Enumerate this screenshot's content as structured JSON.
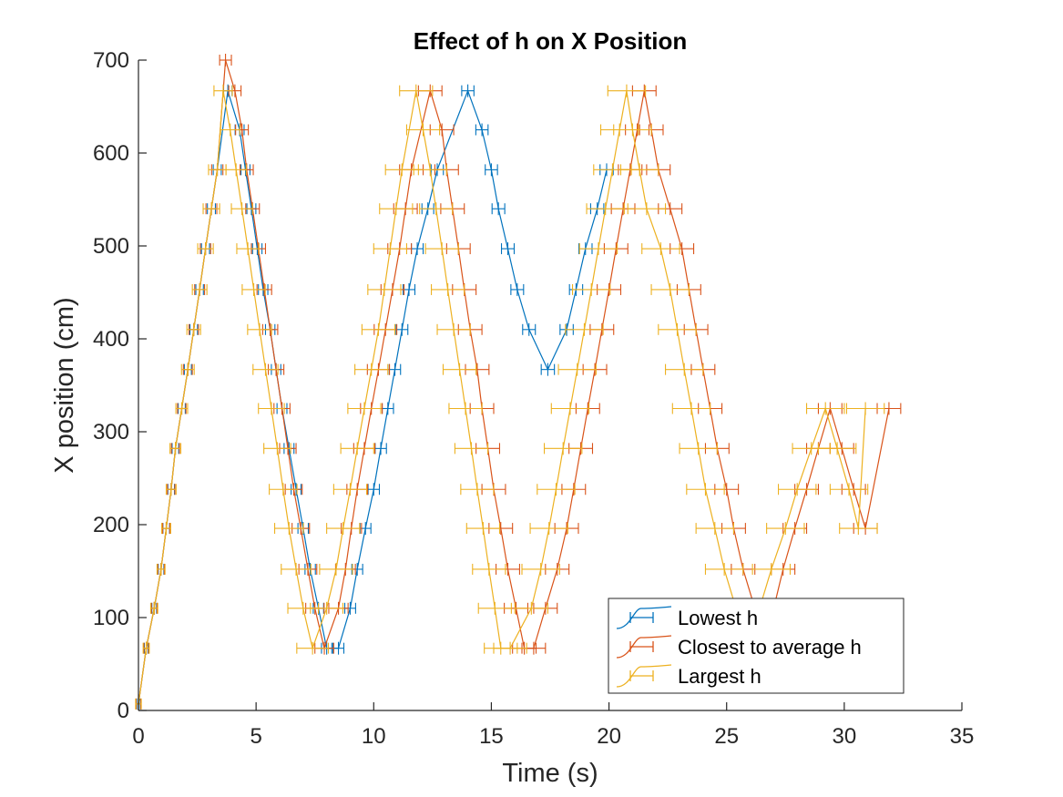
{
  "chart_data": {
    "type": "line",
    "title": "Effect of h on X Position",
    "xlabel": "Time (s)",
    "ylabel": "X position (cm)",
    "xlim": [
      0,
      35
    ],
    "ylim": [
      0,
      700
    ],
    "xticks": [
      0,
      5,
      10,
      15,
      20,
      25,
      30,
      35
    ],
    "yticks": [
      0,
      100,
      200,
      300,
      400,
      500,
      600,
      700
    ],
    "grid": false,
    "legend_position": "bottom-right",
    "error_bars": "horizontal",
    "series": [
      {
        "name": "Lowest h",
        "color": "#0072BD",
        "x": [
          0,
          0.33,
          0.67,
          0.96,
          1.18,
          1.39,
          1.57,
          1.84,
          2.1,
          2.35,
          2.6,
          2.85,
          3.1,
          3.35,
          3.8,
          4.3,
          4.55,
          4.8,
          5.05,
          5.3,
          5.6,
          5.85,
          6.1,
          6.4,
          6.7,
          7.0,
          7.3,
          7.65,
          8.0,
          8.5,
          9.0,
          9.3,
          9.65,
          10.0,
          10.3,
          10.6,
          10.9,
          11.2,
          11.5,
          11.85,
          12.3,
          12.7,
          14.0,
          14.6,
          15.0,
          15.3,
          15.7,
          16.1,
          16.6,
          17.4,
          18.2,
          18.6,
          19.0,
          19.5,
          19.9
        ],
        "y": [
          7,
          67,
          110,
          152,
          196,
          238,
          282,
          325,
          367,
          410,
          453,
          497,
          540,
          582,
          667,
          625,
          582,
          540,
          497,
          453,
          410,
          367,
          325,
          282,
          238,
          196,
          152,
          110,
          67,
          67,
          110,
          152,
          196,
          238,
          282,
          325,
          367,
          410,
          453,
          497,
          540,
          582,
          667,
          625,
          582,
          540,
          497,
          453,
          410,
          367,
          410,
          453,
          497,
          540,
          582
        ],
        "xerr": [
          0.08,
          0.08,
          0.1,
          0.12,
          0.14,
          0.14,
          0.14,
          0.15,
          0.15,
          0.16,
          0.16,
          0.17,
          0.17,
          0.17,
          0.18,
          0.19,
          0.19,
          0.19,
          0.2,
          0.2,
          0.2,
          0.2,
          0.21,
          0.21,
          0.21,
          0.22,
          0.22,
          0.22,
          0.22,
          0.23,
          0.23,
          0.23,
          0.23,
          0.24,
          0.24,
          0.24,
          0.24,
          0.25,
          0.25,
          0.25,
          0.25,
          0.26,
          0.26,
          0.26,
          0.26,
          0.27,
          0.27,
          0.27,
          0.27,
          0.28,
          0.28,
          0.28,
          0.28,
          0.28,
          0.28
        ]
      },
      {
        "name": "Closest to average h",
        "color": "#D95319",
        "x": [
          0,
          0.33,
          0.67,
          0.96,
          1.18,
          1.39,
          1.57,
          1.84,
          2.1,
          2.35,
          2.6,
          2.85,
          3.1,
          3.35,
          3.7,
          4.1,
          4.4,
          4.6,
          4.85,
          5.1,
          5.35,
          5.6,
          5.85,
          6.1,
          6.35,
          6.6,
          6.9,
          7.2,
          7.5,
          7.9,
          8.5,
          8.8,
          9.05,
          9.3,
          9.6,
          9.9,
          10.2,
          10.5,
          10.8,
          11.1,
          11.35,
          11.6,
          12.4,
          12.9,
          13.1,
          13.35,
          13.6,
          13.85,
          14.1,
          14.4,
          14.6,
          14.85,
          15.1,
          15.4,
          15.7,
          16.05,
          16.4,
          16.8,
          17.3,
          17.8,
          18.2,
          18.5,
          18.8,
          19.1,
          19.4,
          19.7,
          20.0,
          20.3,
          20.6,
          20.9,
          21.2,
          21.5,
          21.8,
          22.1,
          22.6,
          23.1,
          23.4,
          23.7,
          24.0,
          24.3,
          24.6,
          25.0,
          25.3,
          25.7,
          26.2,
          26.6,
          27.0,
          27.4,
          27.9,
          28.4,
          28.9,
          29.4,
          29.9,
          30.4,
          30.9,
          31.9
        ],
        "y": [
          7,
          67,
          110,
          152,
          196,
          238,
          282,
          325,
          367,
          410,
          453,
          497,
          540,
          582,
          700,
          667,
          625,
          582,
          540,
          497,
          453,
          410,
          367,
          325,
          282,
          238,
          196,
          152,
          110,
          67,
          110,
          152,
          196,
          238,
          282,
          325,
          367,
          410,
          453,
          497,
          540,
          582,
          667,
          625,
          582,
          540,
          497,
          453,
          410,
          367,
          325,
          282,
          238,
          196,
          152,
          110,
          67,
          67,
          110,
          152,
          196,
          238,
          282,
          325,
          367,
          410,
          453,
          497,
          540,
          582,
          625,
          667,
          625,
          582,
          540,
          497,
          453,
          410,
          367,
          325,
          282,
          238,
          196,
          152,
          110,
          67,
          110,
          152,
          196,
          238,
          282,
          325,
          282,
          238,
          196,
          325
        ],
        "xerr": [
          0.1,
          0.1,
          0.12,
          0.14,
          0.15,
          0.16,
          0.17,
          0.18,
          0.19,
          0.2,
          0.21,
          0.22,
          0.23,
          0.24,
          0.25,
          0.26,
          0.27,
          0.28,
          0.29,
          0.3,
          0.31,
          0.32,
          0.33,
          0.34,
          0.35,
          0.36,
          0.37,
          0.38,
          0.39,
          0.4,
          0.41,
          0.42,
          0.43,
          0.44,
          0.45,
          0.46,
          0.47,
          0.48,
          0.49,
          0.5,
          0.5,
          0.5,
          0.5,
          0.5,
          0.5,
          0.5,
          0.5,
          0.5,
          0.5,
          0.5,
          0.5,
          0.5,
          0.5,
          0.5,
          0.5,
          0.5,
          0.5,
          0.5,
          0.5,
          0.5,
          0.5,
          0.5,
          0.5,
          0.5,
          0.5,
          0.5,
          0.5,
          0.5,
          0.5,
          0.5,
          0.5,
          0.5,
          0.5,
          0.5,
          0.5,
          0.5,
          0.5,
          0.5,
          0.5,
          0.5,
          0.5,
          0.5,
          0.5,
          0.5,
          0.5,
          0.5,
          0.5,
          0.5,
          0.5,
          0.5,
          0.5,
          0.5,
          0.5,
          0.5,
          0.5,
          0.5
        ]
      },
      {
        "name": "Largest h",
        "color": "#EDB120",
        "x": [
          0,
          0.33,
          0.67,
          0.96,
          1.18,
          1.39,
          1.57,
          1.84,
          2.1,
          2.35,
          2.6,
          2.85,
          3.1,
          3.35,
          3.6,
          3.9,
          4.15,
          4.4,
          4.65,
          4.9,
          5.15,
          5.4,
          5.65,
          5.9,
          6.15,
          6.4,
          6.7,
          7.0,
          7.4,
          8.0,
          8.4,
          8.7,
          9.0,
          9.3,
          9.6,
          9.9,
          10.2,
          10.45,
          10.7,
          10.95,
          11.2,
          11.8,
          12.1,
          12.4,
          12.65,
          12.9,
          13.15,
          13.4,
          13.65,
          13.9,
          14.15,
          14.4,
          14.65,
          14.9,
          15.15,
          15.4,
          15.8,
          16.7,
          17.1,
          17.45,
          17.75,
          18.05,
          18.35,
          18.65,
          18.95,
          19.25,
          19.55,
          19.85,
          20.15,
          20.45,
          20.75,
          21.0,
          21.3,
          21.6,
          22.2,
          22.6,
          22.9,
          23.2,
          23.5,
          23.8,
          24.1,
          24.5,
          24.9,
          25.4,
          25.9,
          26.4,
          26.9,
          27.5,
          28.0,
          28.6,
          29.2,
          29.7,
          30.2,
          30.6,
          30.9
        ],
        "y": [
          7,
          67,
          110,
          152,
          196,
          238,
          282,
          325,
          367,
          410,
          453,
          497,
          540,
          582,
          667,
          625,
          582,
          540,
          497,
          453,
          410,
          367,
          325,
          282,
          238,
          196,
          152,
          110,
          67,
          110,
          152,
          196,
          238,
          282,
          325,
          367,
          410,
          453,
          497,
          540,
          582,
          667,
          625,
          582,
          540,
          497,
          453,
          410,
          367,
          325,
          282,
          238,
          196,
          152,
          110,
          67,
          67,
          110,
          152,
          196,
          238,
          282,
          325,
          367,
          410,
          453,
          497,
          540,
          582,
          625,
          667,
          625,
          582,
          540,
          497,
          453,
          410,
          367,
          325,
          282,
          238,
          196,
          152,
          110,
          67,
          110,
          152,
          196,
          238,
          282,
          325,
          282,
          238,
          196,
          325
        ],
        "xerr": [
          0.12,
          0.13,
          0.15,
          0.17,
          0.19,
          0.21,
          0.23,
          0.25,
          0.27,
          0.29,
          0.31,
          0.33,
          0.35,
          0.37,
          0.39,
          0.41,
          0.43,
          0.45,
          0.47,
          0.49,
          0.51,
          0.53,
          0.55,
          0.57,
          0.59,
          0.61,
          0.63,
          0.65,
          0.67,
          0.69,
          0.7,
          0.7,
          0.7,
          0.7,
          0.7,
          0.7,
          0.7,
          0.7,
          0.7,
          0.7,
          0.7,
          0.7,
          0.7,
          0.7,
          0.7,
          0.7,
          0.7,
          0.7,
          0.7,
          0.7,
          0.7,
          0.7,
          0.7,
          0.7,
          0.7,
          0.7,
          0.7,
          0.7,
          0.8,
          0.8,
          0.8,
          0.8,
          0.8,
          0.8,
          0.8,
          0.8,
          0.8,
          0.8,
          0.8,
          0.8,
          0.8,
          0.8,
          0.8,
          0.8,
          0.8,
          0.8,
          0.8,
          0.8,
          0.8,
          0.8,
          0.8,
          0.8,
          0.8,
          0.8,
          0.8,
          0.8,
          0.8,
          0.8,
          0.8,
          0.8,
          0.8,
          0.8,
          0.8,
          0.8,
          0.8
        ]
      }
    ]
  }
}
